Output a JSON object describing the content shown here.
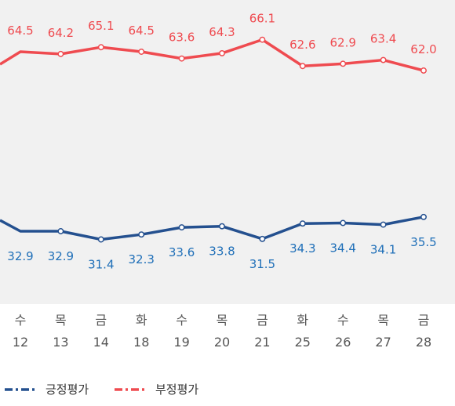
{
  "chart_data": {
    "type": "line",
    "categories": [
      {
        "day": "수",
        "date": "12"
      },
      {
        "day": "목",
        "date": "13"
      },
      {
        "day": "금",
        "date": "14"
      },
      {
        "day": "화",
        "date": "18"
      },
      {
        "day": "수",
        "date": "19"
      },
      {
        "day": "목",
        "date": "20"
      },
      {
        "day": "금",
        "date": "21"
      },
      {
        "day": "화",
        "date": "25"
      },
      {
        "day": "수",
        "date": "26"
      },
      {
        "day": "목",
        "date": "27"
      },
      {
        "day": "금",
        "date": "28"
      }
    ],
    "series": [
      {
        "name": "부정평가",
        "color": "#ef4b50",
        "label_color": "#ef4b50",
        "values": [
          64.5,
          64.2,
          65.1,
          64.5,
          63.6,
          64.3,
          66.1,
          62.6,
          62.9,
          63.4,
          62.0
        ],
        "labels": [
          "64.5",
          "64.2",
          "65.1",
          "64.5",
          "63.6",
          "64.3",
          "66.1",
          "62.6",
          "62.9",
          "63.4",
          "62.0"
        ]
      },
      {
        "name": "긍정평가",
        "color": "#24508f",
        "label_color": "#1f6fb8",
        "values": [
          32.9,
          32.9,
          31.4,
          32.3,
          33.6,
          33.8,
          31.5,
          34.3,
          34.4,
          34.1,
          35.5
        ],
        "labels": [
          "32.9",
          "32.9",
          "31.4",
          "32.3",
          "33.6",
          "33.8",
          "31.5",
          "34.3",
          "34.4",
          "34.1",
          "35.5"
        ]
      }
    ],
    "legend": {
      "placement": "bottom-left",
      "items": [
        {
          "name": "긍정평가",
          "color": "#24508f"
        },
        {
          "name": "부정평가",
          "color": "#ef4b50"
        }
      ]
    },
    "grid": false,
    "y_axis_visible": false
  }
}
